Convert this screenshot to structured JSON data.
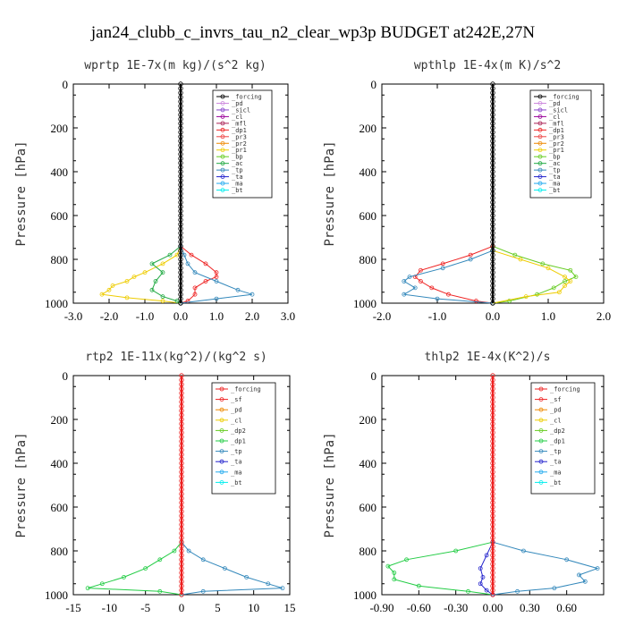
{
  "title": "jan24_clubb_c_invrs_tau_n2_clear_wp3p  BUDGET at242E,27N",
  "chart_data": [
    {
      "type": "line",
      "title": "wprtp  1E-7x(m kg)/(s^2 kg)",
      "ylabel": "Pressure [hPa]",
      "xlim": [
        -3,
        3
      ],
      "ylim": [
        1000,
        0
      ],
      "xticks": [
        "-3.0",
        "-2.0",
        "-1.0",
        "0.0",
        "1.0",
        "2.0",
        "3.0"
      ],
      "yticks": [
        "0",
        "200",
        "400",
        "600",
        "800",
        "1000"
      ],
      "legend": [
        "_forcing",
        "_pd",
        "_sicl",
        "_cl",
        "_mfl",
        "_dp1",
        "_pr3",
        "_pr2",
        "_pr1",
        "_bp",
        "_ac",
        "_tp",
        "_ta",
        "_ma",
        "_bt"
      ],
      "colors": [
        "#000000",
        "#cc88dd",
        "#8844cc",
        "#990099",
        "#aa2255",
        "#ee2222",
        "#ee4444",
        "#ee8800",
        "#eecc00",
        "#66cc22",
        "#22aa44",
        "#3388bb",
        "#2222cc",
        "#22aaee",
        "#00eeee"
      ],
      "series": [
        {
          "name": "_pr1",
          "color": "#eecc00",
          "y": [
            740,
            780,
            820,
            860,
            880,
            900,
            920,
            940,
            960,
            975,
            990,
            1000
          ],
          "x": [
            0,
            -0.1,
            -0.5,
            -1.0,
            -1.3,
            -1.5,
            -1.9,
            -2.0,
            -2.2,
            -1.5,
            -0.5,
            0
          ]
        },
        {
          "name": "_ac",
          "color": "#22aa44",
          "y": [
            740,
            780,
            820,
            860,
            900,
            940,
            970,
            990,
            1000
          ],
          "x": [
            0,
            -0.3,
            -0.8,
            -0.5,
            -0.7,
            -0.8,
            -0.5,
            -0.1,
            0
          ]
        },
        {
          "name": "_dp1",
          "color": "#ee2222",
          "y": [
            740,
            780,
            820,
            860,
            880,
            900,
            930,
            960,
            990,
            1000
          ],
          "x": [
            0,
            0.3,
            0.7,
            1.0,
            1.0,
            0.7,
            0.4,
            0.4,
            0.2,
            0
          ]
        },
        {
          "name": "_tp",
          "color": "#3388bb",
          "y": [
            740,
            780,
            820,
            860,
            900,
            940,
            960,
            980,
            1000
          ],
          "x": [
            0,
            0.1,
            0.2,
            0.4,
            1.0,
            1.6,
            2.0,
            1.0,
            0
          ]
        },
        {
          "name": "_forcing",
          "color": "#000000",
          "y": [
            0,
            1000
          ],
          "x": [
            0,
            0
          ]
        }
      ]
    },
    {
      "type": "line",
      "title": "wpthlp  1E-4x(m K)/s^2",
      "ylabel": "Pressure [hPa]",
      "xlim": [
        -2,
        2
      ],
      "ylim": [
        1000,
        0
      ],
      "xticks": [
        "-2.0",
        "-1.0",
        "0.0",
        "1.0",
        "2.0"
      ],
      "yticks": [
        "0",
        "200",
        "400",
        "600",
        "800",
        "1000"
      ],
      "legend": [
        "_forcing",
        "_pd",
        "_sicl",
        "_cl",
        "_mfl",
        "_dp1",
        "_pr3",
        "_pr2",
        "_pr1",
        "_bp",
        "_ac",
        "_tp",
        "_ta",
        "_ma",
        "_bt"
      ],
      "colors": [
        "#000000",
        "#cc88dd",
        "#8844cc",
        "#990099",
        "#aa2255",
        "#ee2222",
        "#ee4444",
        "#ee8800",
        "#eecc00",
        "#66cc22",
        "#22aa44",
        "#3388bb",
        "#2222cc",
        "#22aaee",
        "#00eeee"
      ],
      "series": [
        {
          "name": "_bp",
          "color": "#66cc22",
          "y": [
            740,
            780,
            820,
            850,
            880,
            900,
            930,
            960,
            990,
            1000
          ],
          "x": [
            0,
            0.4,
            0.9,
            1.4,
            1.5,
            1.3,
            1.1,
            0.8,
            0.3,
            0
          ]
        },
        {
          "name": "_pr1",
          "color": "#eecc00",
          "y": [
            760,
            800,
            840,
            880,
            900,
            920,
            950,
            970,
            1000
          ],
          "x": [
            0,
            0.5,
            1.0,
            1.3,
            1.4,
            1.3,
            1.2,
            0.6,
            0
          ]
        },
        {
          "name": "_dp1",
          "color": "#ee2222",
          "y": [
            740,
            780,
            820,
            850,
            880,
            900,
            930,
            960,
            990,
            1000
          ],
          "x": [
            0,
            -0.4,
            -0.9,
            -1.3,
            -1.4,
            -1.3,
            -1.1,
            -0.8,
            -0.3,
            0
          ]
        },
        {
          "name": "_tp",
          "color": "#3388bb",
          "y": [
            760,
            800,
            840,
            880,
            900,
            930,
            960,
            980,
            1000
          ],
          "x": [
            0,
            -0.4,
            -0.9,
            -1.5,
            -1.6,
            -1.4,
            -1.6,
            -1.0,
            0
          ]
        },
        {
          "name": "_forcing",
          "color": "#000000",
          "y": [
            0,
            1000
          ],
          "x": [
            0,
            0
          ]
        }
      ]
    },
    {
      "type": "line",
      "title": "rtp2  1E-11x(kg^2)/(kg^2 s)",
      "ylabel": "Pressure [hPa]",
      "xlim": [
        -15,
        15
      ],
      "ylim": [
        1000,
        0
      ],
      "xticks": [
        "-15",
        "-10",
        "-5",
        "0",
        "5",
        "10",
        "15"
      ],
      "yticks": [
        "0",
        "200",
        "400",
        "600",
        "800",
        "1000"
      ],
      "legend": [
        "_forcing",
        "_sf",
        "_pd",
        "_cl",
        "_dp2",
        "_dp1",
        "_tp",
        "_ta",
        "_ma",
        "_bt"
      ],
      "colors": [
        "#ee2222",
        "#ee2222",
        "#ee8800",
        "#eecc00",
        "#66cc22",
        "#22cc44",
        "#3388bb",
        "#2222cc",
        "#22aaee",
        "#00eeee"
      ],
      "series": [
        {
          "name": "_dp1",
          "color": "#22cc44",
          "y": [
            760,
            800,
            840,
            880,
            920,
            950,
            970,
            985,
            1000
          ],
          "x": [
            0,
            -1,
            -3,
            -5,
            -8,
            -11,
            -13,
            -3,
            0
          ]
        },
        {
          "name": "_tp",
          "color": "#3388bb",
          "y": [
            760,
            800,
            840,
            880,
            920,
            950,
            970,
            985,
            1000
          ],
          "x": [
            0,
            1,
            3,
            6,
            9,
            12,
            14,
            3,
            0
          ]
        },
        {
          "name": "_forcing",
          "color": "#ee2222",
          "y": [
            0,
            1000
          ],
          "x": [
            0,
            0
          ]
        }
      ]
    },
    {
      "type": "line",
      "title": "thlp2  1E-4x(K^2)/s",
      "ylabel": "Pressure [hPa]",
      "xlim": [
        -0.9,
        0.9
      ],
      "ylim": [
        1000,
        0
      ],
      "xticks": [
        "-0.90",
        "-0.60",
        "-0.30",
        "0.00",
        "0.30",
        "0.60"
      ],
      "yticks": [
        "0",
        "200",
        "400",
        "600",
        "800",
        "1000"
      ],
      "legend": [
        "_forcing",
        "_sf",
        "_pd",
        "_cl",
        "_dp2",
        "_dp1",
        "_tp",
        "_ta",
        "_ma",
        "_bt"
      ],
      "colors": [
        "#ee2222",
        "#ee2222",
        "#ee8800",
        "#eecc00",
        "#66cc22",
        "#22cc44",
        "#3388bb",
        "#2222cc",
        "#22aaee",
        "#00eeee"
      ],
      "series": [
        {
          "name": "_dp1",
          "color": "#22cc44",
          "y": [
            760,
            800,
            840,
            870,
            900,
            930,
            960,
            985,
            1000
          ],
          "x": [
            0,
            -0.3,
            -0.7,
            -0.85,
            -0.8,
            -0.8,
            -0.6,
            -0.2,
            0
          ]
        },
        {
          "name": "_tp",
          "color": "#3388bb",
          "y": [
            760,
            800,
            840,
            880,
            910,
            940,
            970,
            985,
            1000
          ],
          "x": [
            0,
            0.25,
            0.6,
            0.85,
            0.7,
            0.75,
            0.5,
            0.2,
            0
          ]
        },
        {
          "name": "_ta",
          "color": "#2222cc",
          "y": [
            760,
            820,
            880,
            920,
            950,
            980,
            1000
          ],
          "x": [
            0,
            -0.05,
            -0.1,
            -0.08,
            -0.1,
            -0.05,
            0
          ]
        },
        {
          "name": "_forcing",
          "color": "#ee2222",
          "y": [
            0,
            1000
          ],
          "x": [
            0,
            0
          ]
        }
      ]
    }
  ]
}
